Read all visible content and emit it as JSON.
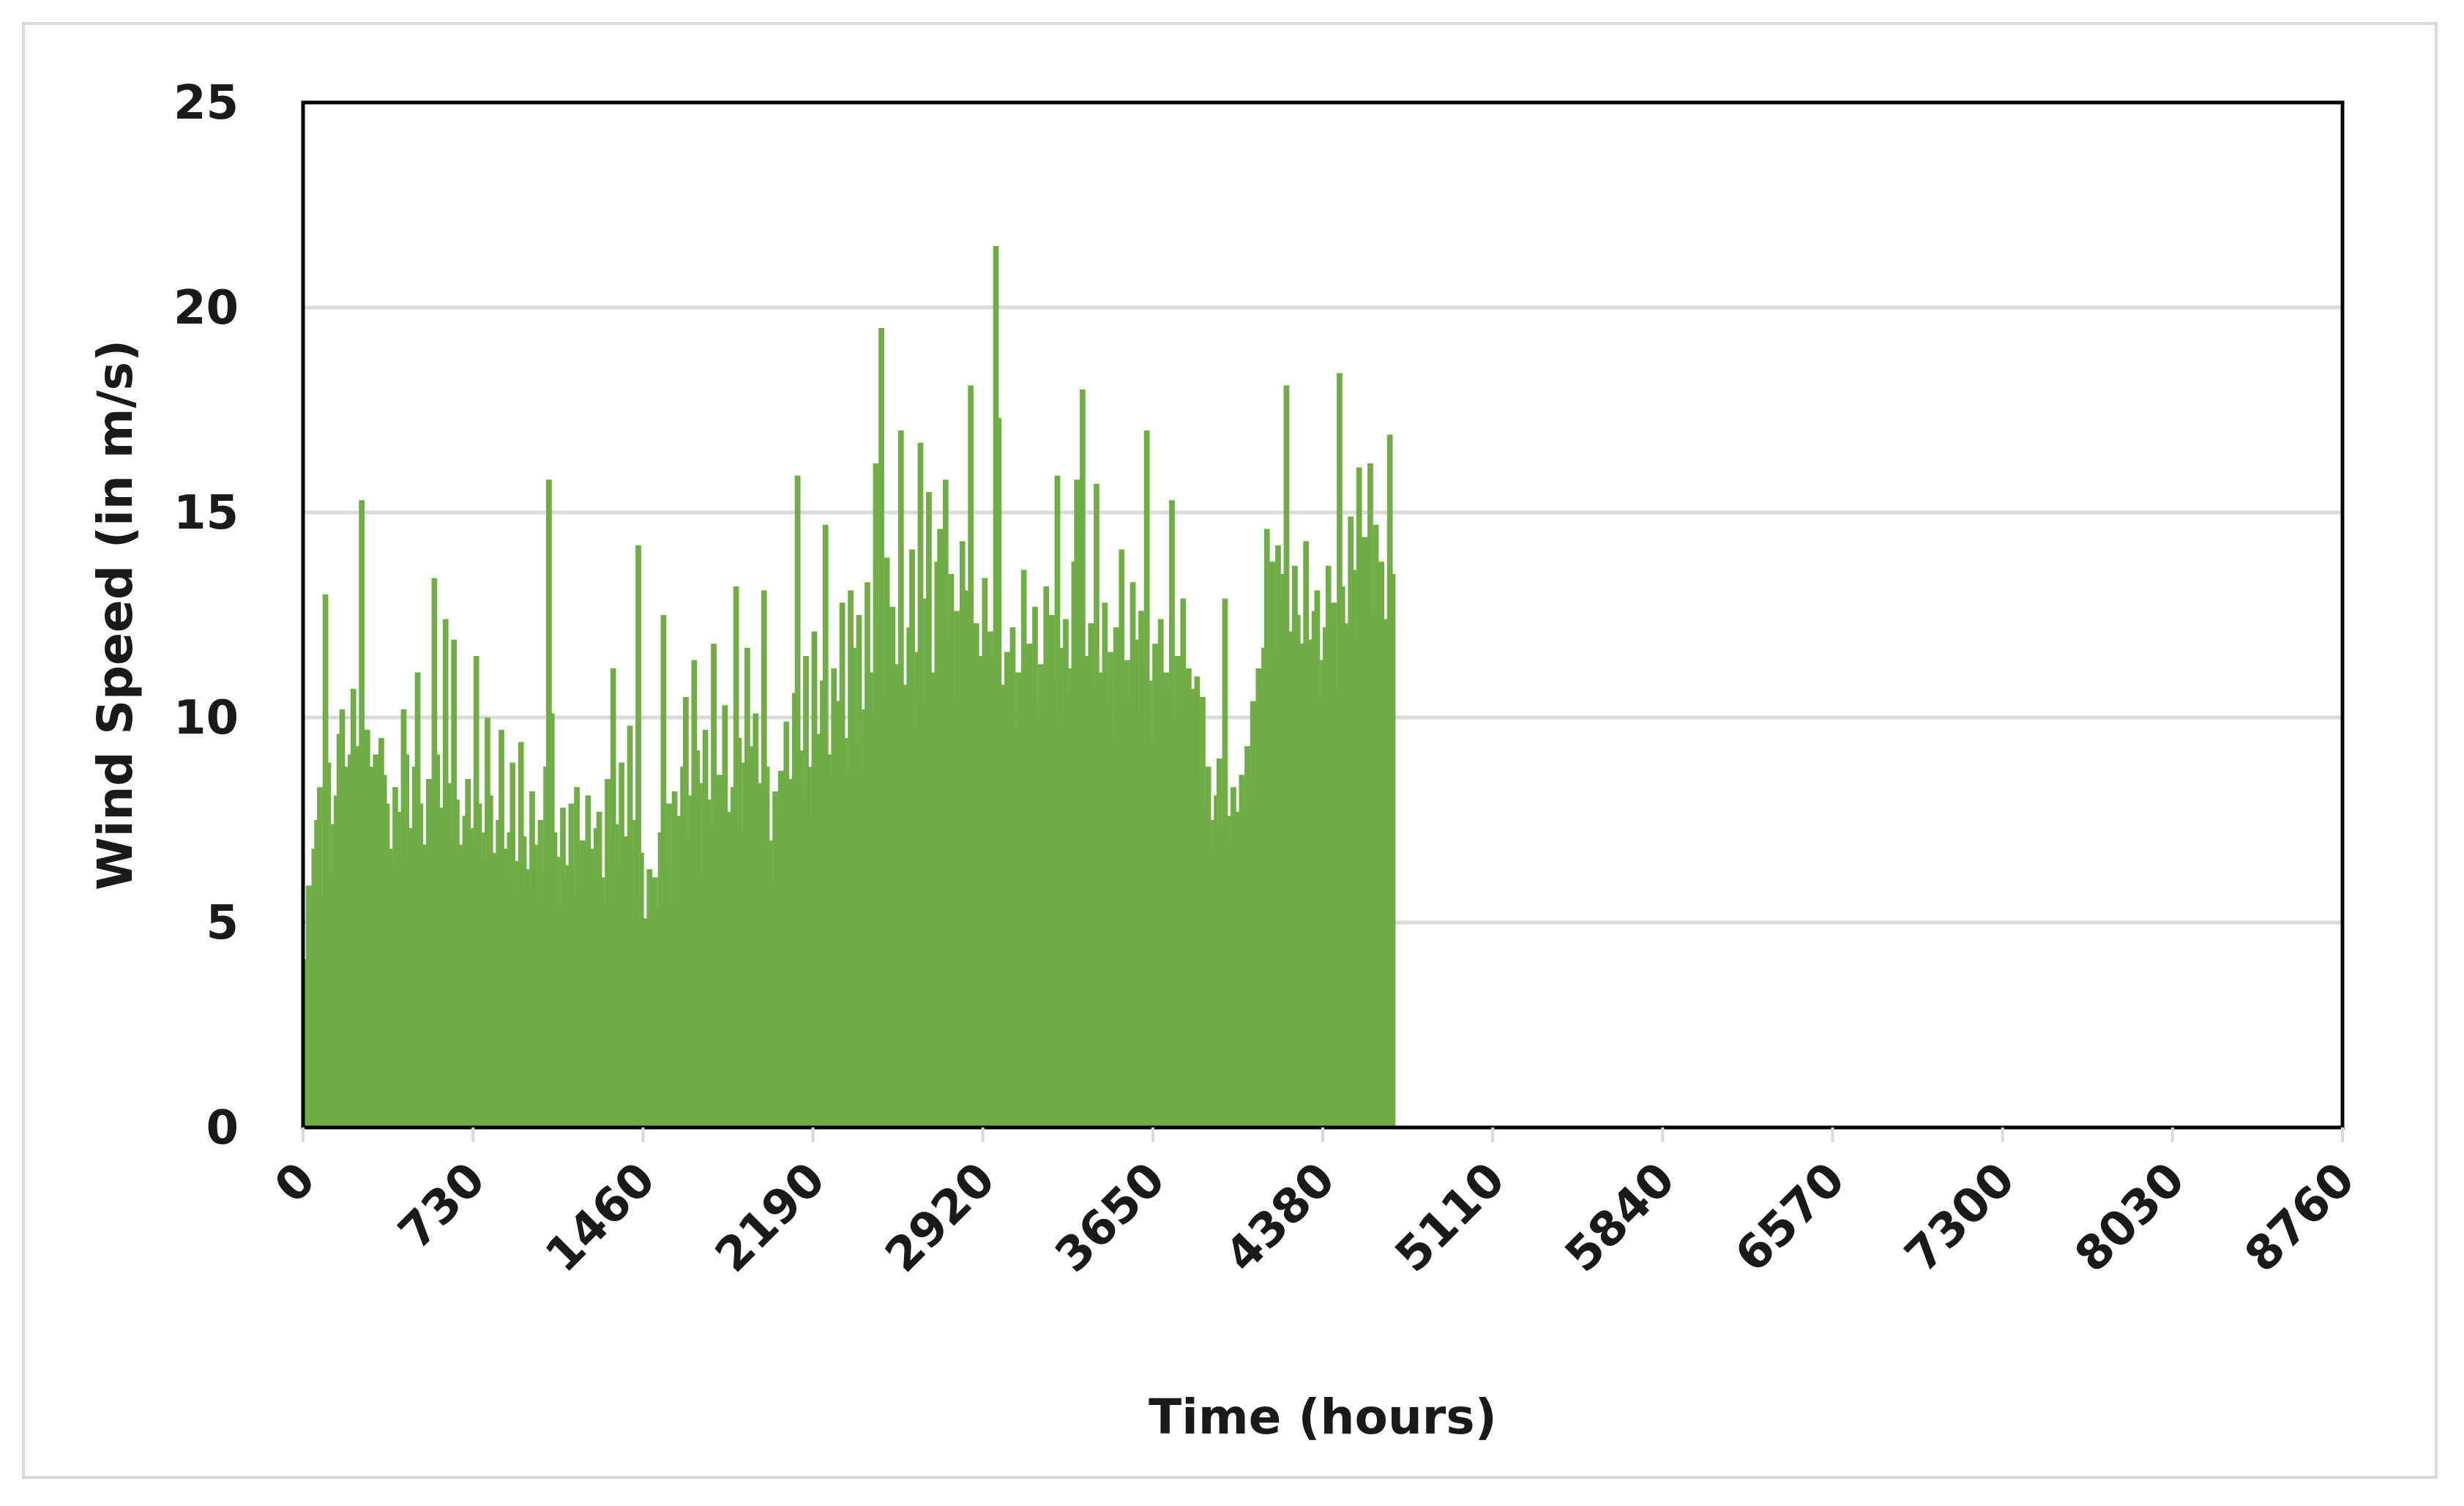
{
  "chart_data": {
    "type": "bar",
    "title": "",
    "xlabel": "Time (hours)",
    "ylabel": "Wind Speed (in m/s)",
    "xlim": [
      0,
      8760
    ],
    "ylim": [
      0,
      25
    ],
    "x_ticks": [
      "0",
      "730",
      "1460",
      "2190",
      "2920",
      "3650",
      "4380",
      "5110",
      "5840",
      "6570",
      "7300",
      "8030",
      "8760"
    ],
    "y_ticks": [
      "0",
      "5",
      "10",
      "15",
      "20",
      "25"
    ],
    "grid": "horizontal",
    "legend": "none",
    "bar_color": "#70ad47",
    "x_step_hours": 12,
    "values": [
      4.1,
      5.9,
      5.2,
      6.8,
      7.5,
      8.3,
      5.6,
      13,
      8.9,
      6.2,
      7.4,
      8.1,
      9.6,
      10.2,
      8.8,
      7.6,
      9.1,
      10.7,
      8.5,
      9.3,
      15.3,
      8.2,
      9.7,
      8.8,
      8,
      9.1,
      7.2,
      9.5,
      8.6,
      7.9,
      6.8,
      6.4,
      8.3,
      7.7,
      6.5,
      10.2,
      9.1,
      7.3,
      6.7,
      8.8,
      11.1,
      7.9,
      6.9,
      6.3,
      8.5,
      7.4,
      13.4,
      9.1,
      7.8,
      6.2,
      12.4,
      8.4,
      7.1,
      11.9,
      8,
      6.9,
      4,
      7.6,
      8.5,
      7.3,
      6.8,
      11.5,
      7.9,
      6.4,
      7.2,
      10,
      8.1,
      6.7,
      5.8,
      7.5,
      9.7,
      6.8,
      6,
      7.2,
      8.9,
      6.5,
      5.6,
      9.4,
      7.1,
      6.3,
      5.8,
      8.2,
      6.9,
      5.4,
      7.5,
      6.2,
      8.8,
      15.8,
      10.1,
      7.2,
      6.6,
      5.3,
      7.8,
      6.1,
      6.4,
      7.9,
      5.7,
      8.3,
      6.5,
      7,
      5.2,
      8.1,
      6.8,
      5.9,
      7.3,
      7.7,
      6.1,
      5.5,
      8.5,
      6.9,
      11.2,
      7.4,
      6.3,
      8.9,
      6.2,
      7.1,
      9.8,
      5.6,
      7.5,
      14.2,
      6.7,
      5.1,
      4.6,
      6.3,
      4.8,
      6.1,
      5.3,
      7.2,
      12.5,
      6.4,
      7.9,
      5.5,
      8.2,
      6.9,
      7.6,
      8.8,
      10.5,
      7,
      8.1,
      11.4,
      9.2,
      8.4,
      6.2,
      9.7,
      8,
      7.3,
      11.8,
      6.5,
      8.6,
      4.9,
      10.3,
      7.7,
      6.8,
      8.3,
      13.2,
      9.5,
      7.2,
      8.9,
      11.7,
      9.3,
      7.8,
      10.1,
      8.4,
      7.5,
      13.1,
      8.8,
      7,
      5.9,
      8.2,
      7.6,
      8.7,
      6.3,
      9.9,
      8.5,
      7.1,
      10.6,
      15.9,
      9.2,
      8.1,
      11.5,
      8.8,
      7.4,
      12.1,
      9.6,
      8.3,
      10.9,
      14.7,
      9.1,
      8.5,
      11.2,
      7.9,
      10.4,
      12.8,
      9.5,
      8.6,
      13.1,
      11.7,
      9.3,
      12.5,
      8.7,
      10.2,
      13.3,
      11.1,
      9.8,
      16.2,
      12.4,
      19.5,
      10.5,
      13.9,
      9.1,
      12.7,
      11.3,
      9.4,
      17,
      10.8,
      8.9,
      12.2,
      14.1,
      9.7,
      11.6,
      16.7,
      10.3,
      12.9,
      15.5,
      11.1,
      9.6,
      13.8,
      14.6,
      10.2,
      15.8,
      11.9,
      13.5,
      10.4,
      12.6,
      9.9,
      14.3,
      11.2,
      13.1,
      18.1,
      10.7,
      12.3,
      11.5,
      9.8,
      13.4,
      10.6,
      12.1,
      11.4,
      21.5,
      17.3,
      10.8,
      9.4,
      11.6,
      10.5,
      12.2,
      9.7,
      11.1,
      10.1,
      13.6,
      9.5,
      11.8,
      10.4,
      12.7,
      9.9,
      11.3,
      10.8,
      13.2,
      9.6,
      12.5,
      10.9,
      15.9,
      11.7,
      9.8,
      12.4,
      10.6,
      11.2,
      13.8,
      15.8,
      10.4,
      18,
      11.5,
      9.2,
      12.3,
      10.7,
      15.7,
      11.1,
      9.9,
      12.8,
      10.3,
      11.6,
      9.5,
      12.2,
      10.8,
      14.1,
      9.7,
      11.4,
      10.5,
      13.3,
      11.9,
      10.1,
      12.6,
      11.3,
      17,
      10.9,
      9.4,
      11.8,
      10.2,
      12.4,
      9.8,
      11.1,
      10.6,
      15.3,
      9.9,
      11.5,
      10.3,
      12.9,
      9.6,
      11.2,
      10.7,
      9.5,
      11,
      8.4,
      10.5,
      7.9,
      8.8,
      6.7,
      7.5,
      8.1,
      9,
      7.3,
      12.9,
      7.6,
      6.9,
      8.3,
      7.7,
      7.2,
      8.6,
      7.9,
      9.3,
      8.1,
      10.4,
      9.5,
      11.2,
      10.8,
      11.7,
      14.6,
      12.4,
      13.8,
      11.6,
      14.2,
      12.9,
      13.5,
      18.1,
      12.1,
      11.3,
      13.7,
      12.5,
      10.9,
      11.8,
      14.3,
      10.7,
      11.9,
      12.6,
      13.1,
      10.5,
      11.4,
      12.2,
      13.7,
      11.1,
      12.8,
      10.6,
      18.4,
      13.2,
      12.3,
      11.5,
      14.9,
      13.6,
      11.9,
      16.1,
      12.7,
      14.4,
      13.3,
      16.2,
      12.5,
      14.7,
      11.6,
      13.8,
      11.3,
      12.4,
      16.9,
      13.5
    ]
  }
}
